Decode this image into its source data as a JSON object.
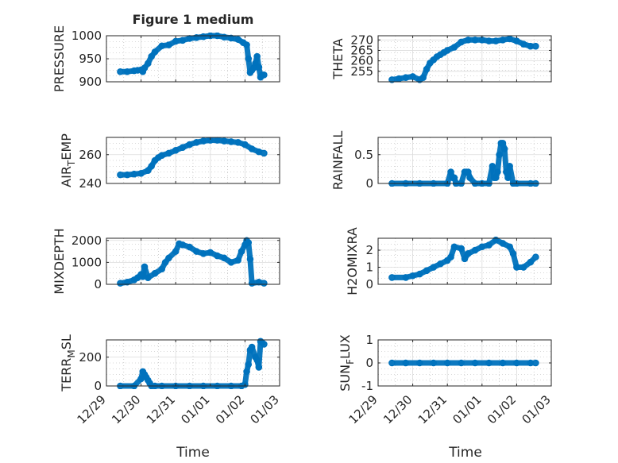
{
  "figure": {
    "title": "Figure 1 medium",
    "xlabel": "Time"
  },
  "colors": {
    "marker": "#0072BD",
    "axes": "#262626",
    "grid": "#dcdcdc",
    "minor_grid": "#b0b0b0"
  },
  "x_axis": {
    "min": 0,
    "max": 5,
    "ticks": [
      0,
      1,
      2,
      3,
      4,
      5
    ],
    "tick_labels": [
      "12/29",
      "12/30",
      "12/31",
      "01/01",
      "01/02",
      "01/03"
    ],
    "unit": "days from 12/29 00:00"
  },
  "chart_data": [
    {
      "type": "scatter",
      "id": "pressure",
      "ylabel": "PRESSURE",
      "ylim": [
        900,
        1000
      ],
      "yticks": [
        900,
        950,
        1000
      ],
      "ytick_labels": [
        "900",
        "950",
        "1000"
      ],
      "x": [
        0.4,
        0.6,
        0.8,
        0.9,
        1.0,
        1.05,
        1.1,
        1.2,
        1.3,
        1.4,
        1.6,
        1.8,
        2.0,
        2.2,
        2.4,
        2.6,
        2.8,
        3.0,
        3.2,
        3.4,
        3.6,
        3.8,
        3.95,
        4.05,
        4.1,
        4.15,
        4.2,
        4.25,
        4.3,
        4.35,
        4.4,
        4.45,
        4.5,
        4.55
      ],
      "y": [
        922,
        922,
        924,
        925,
        926,
        922,
        930,
        940,
        955,
        965,
        978,
        980,
        988,
        990,
        994,
        996,
        998,
        1000,
        1000,
        997,
        995,
        992,
        985,
        980,
        950,
        920,
        925,
        930,
        940,
        955,
        932,
        910,
        915,
        915
      ]
    },
    {
      "type": "scatter",
      "id": "theta",
      "ylabel": "THETA",
      "ylim": [
        250,
        272
      ],
      "yticks": [
        255,
        260,
        265,
        270
      ],
      "ytick_labels": [
        "255",
        "260",
        "265",
        "270"
      ],
      "x": [
        0.4,
        0.6,
        0.8,
        1.0,
        1.2,
        1.3,
        1.4,
        1.5,
        1.6,
        1.7,
        1.8,
        1.9,
        2.0,
        2.2,
        2.4,
        2.6,
        2.8,
        3.0,
        3.2,
        3.4,
        3.6,
        3.8,
        4.0,
        4.2,
        4.4,
        4.55
      ],
      "y": [
        251,
        251.5,
        252,
        252.5,
        251,
        252,
        256,
        259,
        260.5,
        262,
        263,
        264,
        265,
        266.5,
        269,
        270,
        270,
        270,
        269.5,
        269.5,
        270,
        270.5,
        269.5,
        268,
        267,
        267
      ]
    },
    {
      "type": "scatter",
      "id": "air_temp",
      "ylabel": "AIR_TEMP",
      "ylim": [
        240,
        272
      ],
      "yticks": [
        240,
        260
      ],
      "ytick_labels": [
        "240",
        "260"
      ],
      "x": [
        0.4,
        0.6,
        0.8,
        1.0,
        1.2,
        1.3,
        1.4,
        1.5,
        1.6,
        1.8,
        2.0,
        2.2,
        2.4,
        2.6,
        2.8,
        3.0,
        3.2,
        3.4,
        3.6,
        3.8,
        4.0,
        4.2,
        4.4,
        4.55
      ],
      "y": [
        246,
        246,
        246.5,
        247,
        249,
        252,
        256,
        258,
        259.5,
        261,
        263,
        265,
        267,
        268.5,
        269.5,
        270,
        270,
        269.5,
        269,
        268.5,
        267,
        264,
        262,
        261
      ]
    },
    {
      "type": "scatter",
      "id": "rainfall",
      "ylabel": "RAINFALL",
      "ylim": [
        0,
        0.8
      ],
      "yticks": [
        0,
        0.5
      ],
      "ytick_labels": [
        "0",
        "0.5"
      ],
      "x": [
        0.4,
        0.8,
        1.2,
        1.6,
        2.0,
        2.1,
        2.15,
        2.2,
        2.25,
        2.4,
        2.5,
        2.55,
        2.6,
        2.65,
        2.8,
        3.0,
        3.2,
        3.3,
        3.35,
        3.4,
        3.45,
        3.5,
        3.55,
        3.6,
        3.65,
        3.7,
        3.75,
        3.8,
        3.9,
        4.0,
        4.4,
        4.55
      ],
      "y": [
        0,
        0,
        0,
        0,
        0,
        0.2,
        0.1,
        0.1,
        0,
        0,
        0.2,
        0.2,
        0.2,
        0.1,
        0,
        0,
        0,
        0.3,
        0.1,
        0.1,
        0.2,
        0.5,
        0.7,
        0.7,
        0.6,
        0.2,
        0.1,
        0.3,
        0,
        0,
        0,
        0
      ]
    },
    {
      "type": "scatter",
      "id": "mixdepth",
      "ylabel": "MIXDEPTH",
      "ylim": [
        0,
        2100
      ],
      "yticks": [
        0,
        1000,
        2000
      ],
      "ytick_labels": [
        "0",
        "1000",
        "2000"
      ],
      "x": [
        0.4,
        0.6,
        0.8,
        0.9,
        1.0,
        1.05,
        1.1,
        1.2,
        1.4,
        1.6,
        1.7,
        1.8,
        2.0,
        2.1,
        2.2,
        2.4,
        2.6,
        2.8,
        3.0,
        3.2,
        3.4,
        3.6,
        3.8,
        3.9,
        4.0,
        4.05,
        4.1,
        4.15,
        4.2,
        4.4,
        4.55
      ],
      "y": [
        50,
        100,
        200,
        300,
        450,
        350,
        800,
        300,
        500,
        700,
        1000,
        1200,
        1500,
        1850,
        1800,
        1700,
        1500,
        1400,
        1450,
        1300,
        1200,
        1000,
        1100,
        1500,
        1800,
        2000,
        1900,
        1150,
        50,
        100,
        50
      ]
    },
    {
      "type": "scatter",
      "id": "h2omixra",
      "ylabel": "H2OMIXRA",
      "ylim": [
        0,
        2.7
      ],
      "yticks": [
        0,
        1,
        2
      ],
      "ytick_labels": [
        "0",
        "1",
        "2"
      ],
      "x": [
        0.4,
        0.8,
        1.0,
        1.2,
        1.4,
        1.6,
        1.8,
        2.0,
        2.1,
        2.2,
        2.4,
        2.5,
        2.6,
        2.8,
        3.0,
        3.2,
        3.4,
        3.6,
        3.8,
        3.9,
        4.0,
        4.2,
        4.4,
        4.55
      ],
      "y": [
        0.4,
        0.4,
        0.5,
        0.6,
        0.8,
        1.0,
        1.2,
        1.4,
        1.6,
        2.2,
        2.1,
        1.5,
        1.8,
        2.0,
        2.2,
        2.3,
        2.6,
        2.4,
        2.2,
        1.8,
        1.0,
        1.0,
        1.3,
        1.6
      ]
    },
    {
      "type": "scatter",
      "id": "terr_msl",
      "ylabel": "TERR_MSL",
      "ylim": [
        0,
        320
      ],
      "yticks": [
        0,
        200
      ],
      "ytick_labels": [
        "0",
        "200"
      ],
      "x": [
        0.4,
        0.8,
        1.0,
        1.05,
        1.1,
        1.15,
        1.2,
        1.25,
        1.3,
        1.4,
        1.6,
        2.0,
        2.4,
        2.8,
        3.2,
        3.6,
        3.9,
        4.0,
        4.05,
        4.1,
        4.15,
        4.2,
        4.3,
        4.35,
        4.4,
        4.45,
        4.5,
        4.55
      ],
      "y": [
        0,
        0,
        50,
        100,
        80,
        60,
        40,
        20,
        0,
        0,
        0,
        0,
        0,
        0,
        0,
        0,
        0,
        10,
        100,
        150,
        250,
        270,
        200,
        180,
        130,
        310,
        300,
        290
      ]
    },
    {
      "type": "scatter",
      "id": "sun_flux",
      "ylabel": "SUN_FLUX",
      "ylim": [
        -1,
        1
      ],
      "yticks": [
        -1,
        0,
        1
      ],
      "ytick_labels": [
        "-1",
        "0",
        "1"
      ],
      "x": [
        0.4,
        0.8,
        1.2,
        1.6,
        2.0,
        2.4,
        2.8,
        3.2,
        3.6,
        4.0,
        4.4,
        4.55
      ],
      "y": [
        0,
        0,
        0,
        0,
        0,
        0,
        0,
        0,
        0,
        0,
        0,
        0
      ]
    }
  ]
}
